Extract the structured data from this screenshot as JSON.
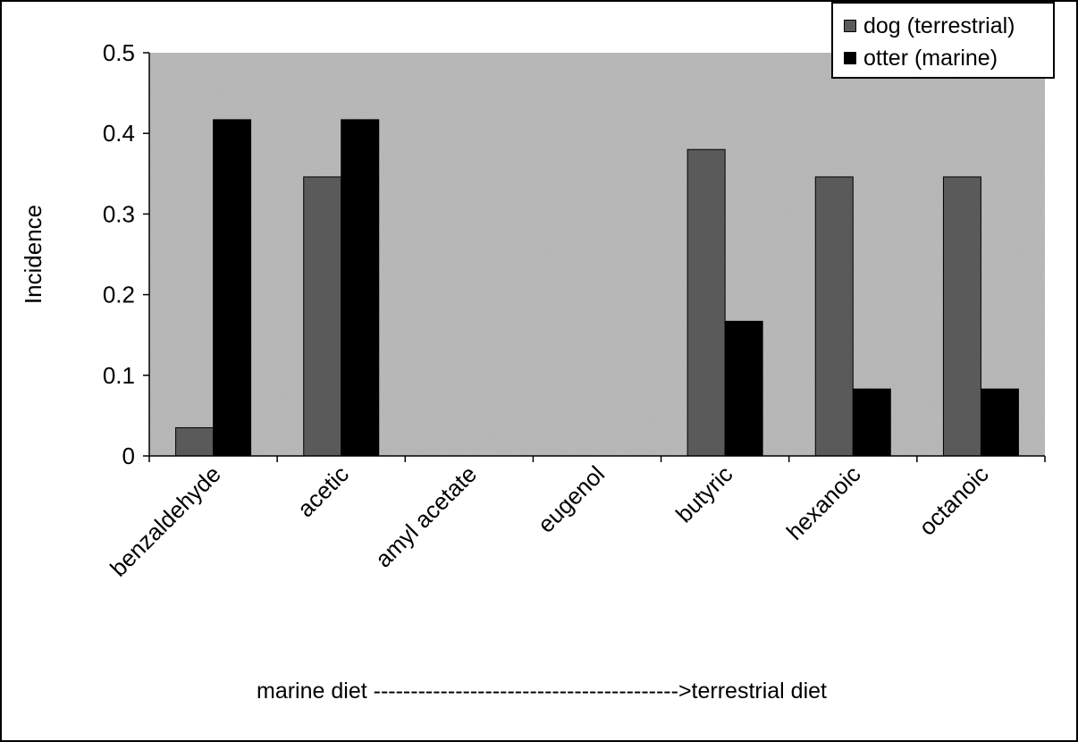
{
  "chart_data": {
    "type": "bar",
    "title": "",
    "xlabel": "",
    "ylabel": "Incidence",
    "ylim": [
      0,
      0.5
    ],
    "yticks": [
      "0",
      "0.1",
      "0.2",
      "0.3",
      "0.4",
      "0.5"
    ],
    "categories": [
      "benzaldehyde",
      "acetic",
      "amyl acetate",
      "eugenol",
      "butyric",
      "hexanoic",
      "octanoic"
    ],
    "series": [
      {
        "name": "dog (terrestrial)",
        "values": [
          0.035,
          0.346,
          0,
          0,
          0.38,
          0.346,
          0.346
        ],
        "color": "#5a5a5a"
      },
      {
        "name": "otter (marine)",
        "values": [
          0.417,
          0.417,
          0,
          0,
          0.167,
          0.083,
          0.083
        ],
        "color": "#000000"
      }
    ],
    "legend_position": "top-right",
    "grid": false,
    "annotation": "marine diet ----------------------------------------->terrestrial diet",
    "colors": {
      "plot_background": "#b4b4b4",
      "axis": "#000000"
    }
  }
}
